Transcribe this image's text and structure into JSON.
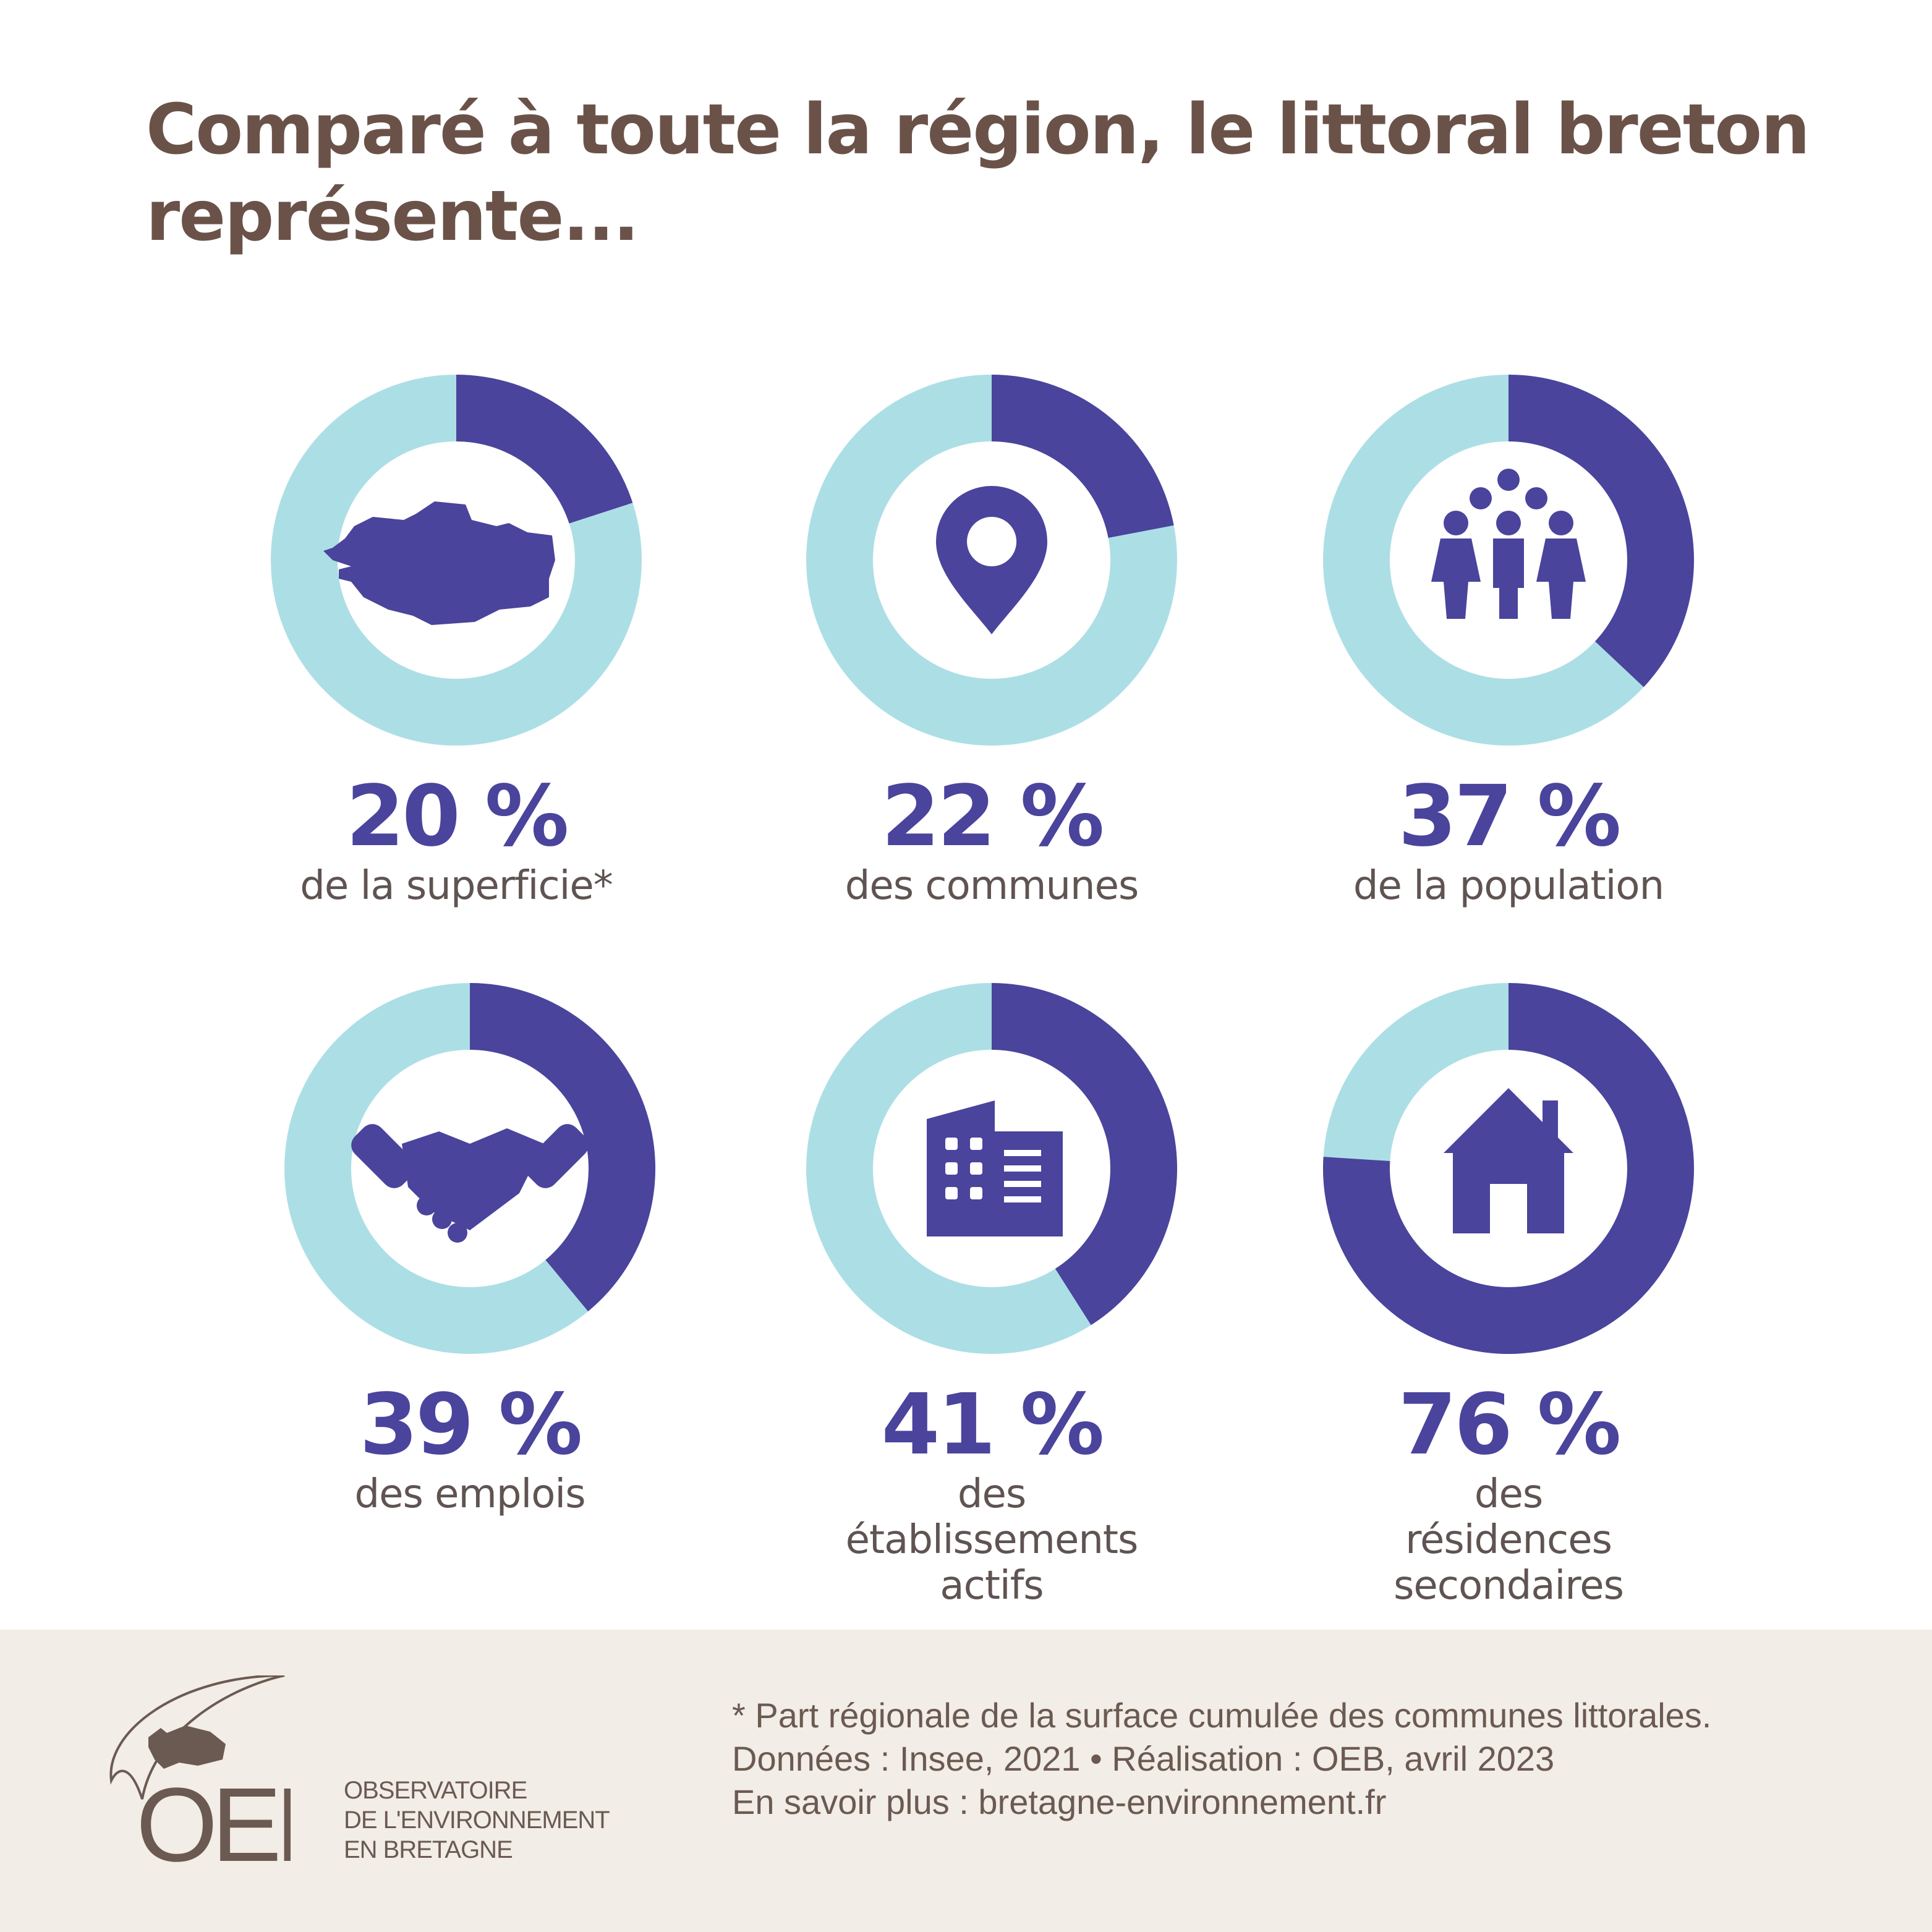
{
  "title": "Comparé à toute la région, le littoral breton représente...",
  "colors": {
    "primary": "#4a449c",
    "secondary": "#acdfe5",
    "title": "#6b5249",
    "footer_bg": "#f2ede6"
  },
  "chart_data": {
    "type": "pie",
    "variant": "donut",
    "items": [
      {
        "value": 20,
        "percent_label": "20 %",
        "label": "de la superficie*",
        "icon": "brittany-map-icon"
      },
      {
        "value": 22,
        "percent_label": "22 %",
        "label": "des communes",
        "icon": "location-pin-icon"
      },
      {
        "value": 37,
        "percent_label": "37 %",
        "label": "de la population",
        "icon": "people-group-icon"
      },
      {
        "value": 39,
        "percent_label": "39 %",
        "label": "des emplois",
        "icon": "handshake-icon"
      },
      {
        "value": 41,
        "percent_label": "41 %",
        "label": "des établissements actifs",
        "icon": "building-icon"
      },
      {
        "value": 76,
        "percent_label": "76 %",
        "label": "des résidences secondaires",
        "icon": "house-icon"
      }
    ]
  },
  "footer": {
    "note": "* Part régionale de la surface cumulée des communes littorales.",
    "source": "Données : Insee, 2021 • Réalisation : OEB, avril 2023",
    "more": "En savoir plus : bretagne-environnement.fr",
    "logo": {
      "acronym": "OEB",
      "line1": "OBSERVATOIRE",
      "line2": "DE L'ENVIRONNEMENT",
      "line3": "EN BRETAGNE"
    }
  }
}
